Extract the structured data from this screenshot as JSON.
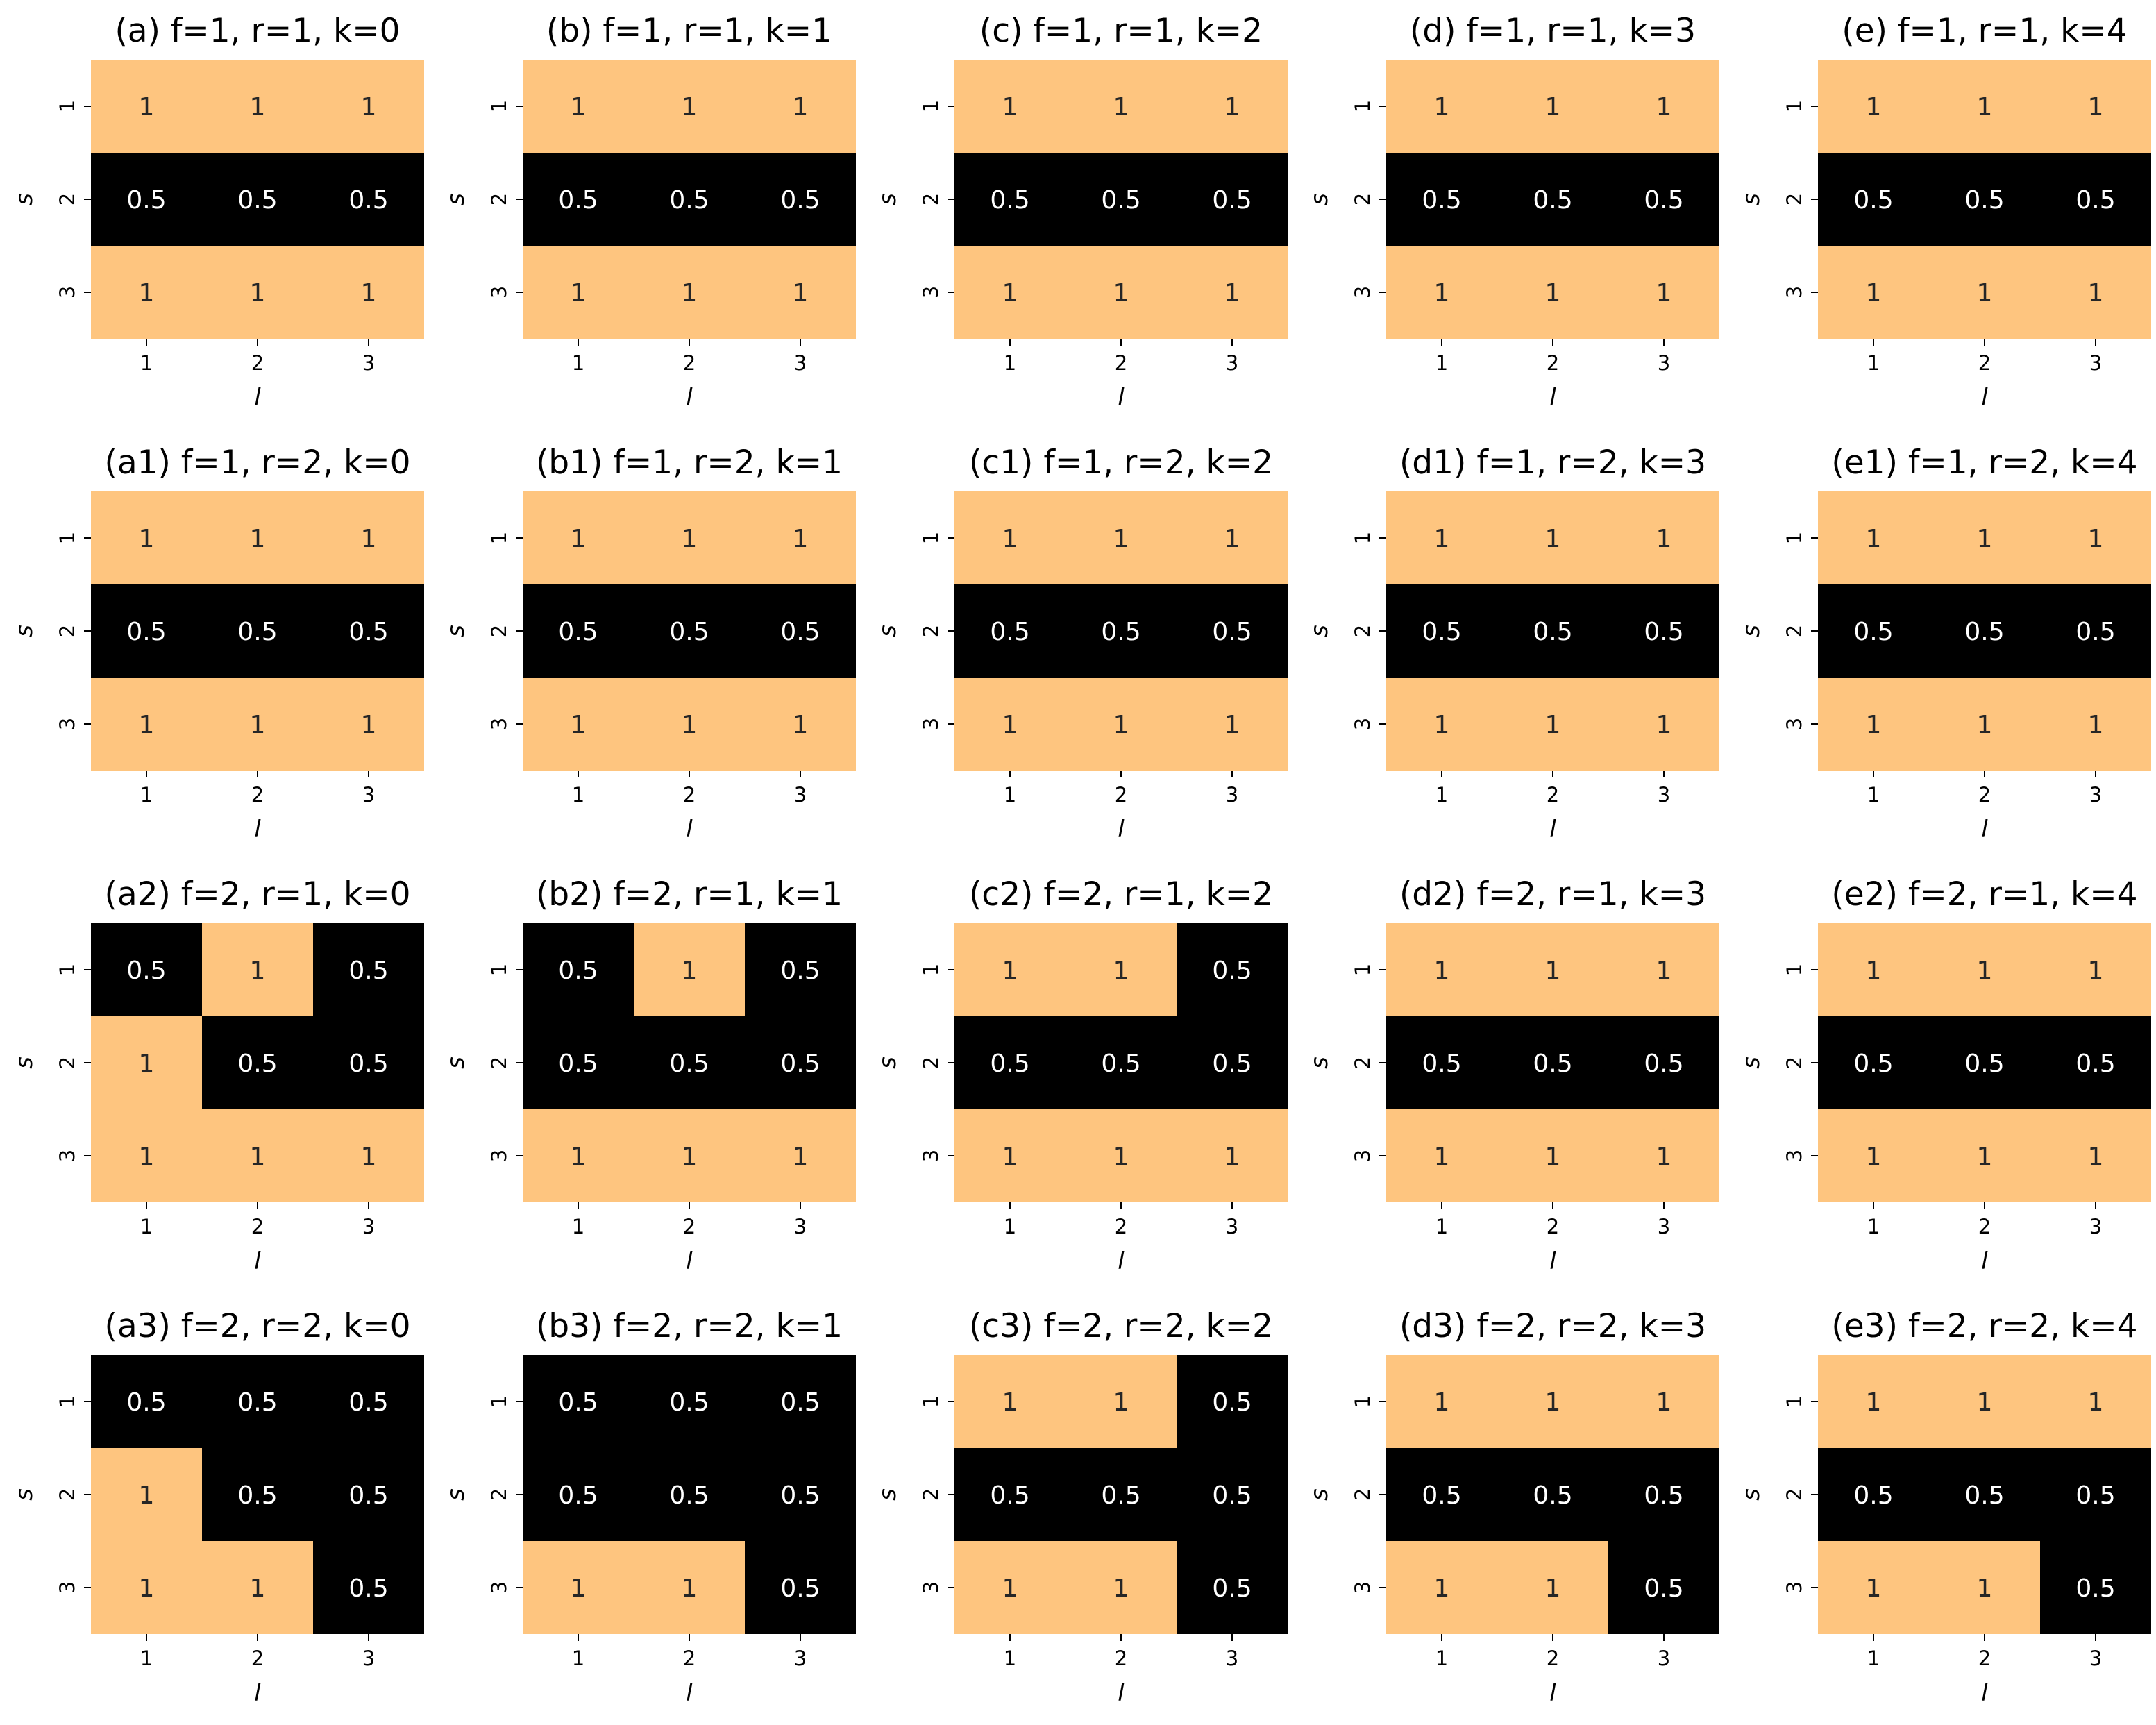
{
  "colors": {
    "high": "#fec57f",
    "low": "#000000",
    "text_on_high": "#262626",
    "text_on_low": "#ffffff"
  },
  "axis_labels": {
    "x": "l",
    "y": "s"
  },
  "chart_data": [
    {
      "type": "heatmap",
      "title": "(a) f=1, r=1, k=0",
      "x_ticks": [
        "1",
        "2",
        "3"
      ],
      "y_ticks": [
        "1",
        "2",
        "3"
      ],
      "xlabel": "l",
      "ylabel": "s",
      "values": [
        [
          1,
          1,
          1
        ],
        [
          0.5,
          0.5,
          0.5
        ],
        [
          1,
          1,
          1
        ]
      ]
    },
    {
      "type": "heatmap",
      "title": "(b) f=1, r=1, k=1",
      "x_ticks": [
        "1",
        "2",
        "3"
      ],
      "y_ticks": [
        "1",
        "2",
        "3"
      ],
      "xlabel": "l",
      "ylabel": "s",
      "values": [
        [
          1,
          1,
          1
        ],
        [
          0.5,
          0.5,
          0.5
        ],
        [
          1,
          1,
          1
        ]
      ]
    },
    {
      "type": "heatmap",
      "title": "(c) f=1, r=1, k=2",
      "x_ticks": [
        "1",
        "2",
        "3"
      ],
      "y_ticks": [
        "1",
        "2",
        "3"
      ],
      "xlabel": "l",
      "ylabel": "s",
      "values": [
        [
          1,
          1,
          1
        ],
        [
          0.5,
          0.5,
          0.5
        ],
        [
          1,
          1,
          1
        ]
      ]
    },
    {
      "type": "heatmap",
      "title": "(d) f=1, r=1, k=3",
      "x_ticks": [
        "1",
        "2",
        "3"
      ],
      "y_ticks": [
        "1",
        "2",
        "3"
      ],
      "xlabel": "l",
      "ylabel": "s",
      "values": [
        [
          1,
          1,
          1
        ],
        [
          0.5,
          0.5,
          0.5
        ],
        [
          1,
          1,
          1
        ]
      ]
    },
    {
      "type": "heatmap",
      "title": "(e) f=1, r=1, k=4",
      "x_ticks": [
        "1",
        "2",
        "3"
      ],
      "y_ticks": [
        "1",
        "2",
        "3"
      ],
      "xlabel": "l",
      "ylabel": "s",
      "values": [
        [
          1,
          1,
          1
        ],
        [
          0.5,
          0.5,
          0.5
        ],
        [
          1,
          1,
          1
        ]
      ]
    },
    {
      "type": "heatmap",
      "title": "(a1) f=1, r=2, k=0",
      "x_ticks": [
        "1",
        "2",
        "3"
      ],
      "y_ticks": [
        "1",
        "2",
        "3"
      ],
      "xlabel": "l",
      "ylabel": "s",
      "values": [
        [
          1,
          1,
          1
        ],
        [
          0.5,
          0.5,
          0.5
        ],
        [
          1,
          1,
          1
        ]
      ]
    },
    {
      "type": "heatmap",
      "title": "(b1) f=1, r=2, k=1",
      "x_ticks": [
        "1",
        "2",
        "3"
      ],
      "y_ticks": [
        "1",
        "2",
        "3"
      ],
      "xlabel": "l",
      "ylabel": "s",
      "values": [
        [
          1,
          1,
          1
        ],
        [
          0.5,
          0.5,
          0.5
        ],
        [
          1,
          1,
          1
        ]
      ]
    },
    {
      "type": "heatmap",
      "title": "(c1) f=1, r=2, k=2",
      "x_ticks": [
        "1",
        "2",
        "3"
      ],
      "y_ticks": [
        "1",
        "2",
        "3"
      ],
      "xlabel": "l",
      "ylabel": "s",
      "values": [
        [
          1,
          1,
          1
        ],
        [
          0.5,
          0.5,
          0.5
        ],
        [
          1,
          1,
          1
        ]
      ]
    },
    {
      "type": "heatmap",
      "title": "(d1) f=1, r=2, k=3",
      "x_ticks": [
        "1",
        "2",
        "3"
      ],
      "y_ticks": [
        "1",
        "2",
        "3"
      ],
      "xlabel": "l",
      "ylabel": "s",
      "values": [
        [
          1,
          1,
          1
        ],
        [
          0.5,
          0.5,
          0.5
        ],
        [
          1,
          1,
          1
        ]
      ]
    },
    {
      "type": "heatmap",
      "title": "(e1) f=1, r=2, k=4",
      "x_ticks": [
        "1",
        "2",
        "3"
      ],
      "y_ticks": [
        "1",
        "2",
        "3"
      ],
      "xlabel": "l",
      "ylabel": "s",
      "values": [
        [
          1,
          1,
          1
        ],
        [
          0.5,
          0.5,
          0.5
        ],
        [
          1,
          1,
          1
        ]
      ]
    },
    {
      "type": "heatmap",
      "title": "(a2) f=2, r=1, k=0",
      "x_ticks": [
        "1",
        "2",
        "3"
      ],
      "y_ticks": [
        "1",
        "2",
        "3"
      ],
      "xlabel": "l",
      "ylabel": "s",
      "values": [
        [
          0.5,
          1,
          0.5
        ],
        [
          1,
          0.5,
          0.5
        ],
        [
          1,
          1,
          1
        ]
      ]
    },
    {
      "type": "heatmap",
      "title": "(b2) f=2, r=1, k=1",
      "x_ticks": [
        "1",
        "2",
        "3"
      ],
      "y_ticks": [
        "1",
        "2",
        "3"
      ],
      "xlabel": "l",
      "ylabel": "s",
      "values": [
        [
          0.5,
          1,
          0.5
        ],
        [
          0.5,
          0.5,
          0.5
        ],
        [
          1,
          1,
          1
        ]
      ]
    },
    {
      "type": "heatmap",
      "title": "(c2) f=2, r=1, k=2",
      "x_ticks": [
        "1",
        "2",
        "3"
      ],
      "y_ticks": [
        "1",
        "2",
        "3"
      ],
      "xlabel": "l",
      "ylabel": "s",
      "values": [
        [
          1,
          1,
          0.5
        ],
        [
          0.5,
          0.5,
          0.5
        ],
        [
          1,
          1,
          1
        ]
      ]
    },
    {
      "type": "heatmap",
      "title": "(d2) f=2, r=1, k=3",
      "x_ticks": [
        "1",
        "2",
        "3"
      ],
      "y_ticks": [
        "1",
        "2",
        "3"
      ],
      "xlabel": "l",
      "ylabel": "s",
      "values": [
        [
          1,
          1,
          1
        ],
        [
          0.5,
          0.5,
          0.5
        ],
        [
          1,
          1,
          1
        ]
      ]
    },
    {
      "type": "heatmap",
      "title": "(e2) f=2, r=1, k=4",
      "x_ticks": [
        "1",
        "2",
        "3"
      ],
      "y_ticks": [
        "1",
        "2",
        "3"
      ],
      "xlabel": "l",
      "ylabel": "s",
      "values": [
        [
          1,
          1,
          1
        ],
        [
          0.5,
          0.5,
          0.5
        ],
        [
          1,
          1,
          1
        ]
      ]
    },
    {
      "type": "heatmap",
      "title": "(a3) f=2, r=2, k=0",
      "x_ticks": [
        "1",
        "2",
        "3"
      ],
      "y_ticks": [
        "1",
        "2",
        "3"
      ],
      "xlabel": "l",
      "ylabel": "s",
      "values": [
        [
          0.5,
          0.5,
          0.5
        ],
        [
          1,
          0.5,
          0.5
        ],
        [
          1,
          1,
          0.5
        ]
      ]
    },
    {
      "type": "heatmap",
      "title": "(b3) f=2, r=2, k=1",
      "x_ticks": [
        "1",
        "2",
        "3"
      ],
      "y_ticks": [
        "1",
        "2",
        "3"
      ],
      "xlabel": "l",
      "ylabel": "s",
      "values": [
        [
          0.5,
          0.5,
          0.5
        ],
        [
          0.5,
          0.5,
          0.5
        ],
        [
          1,
          1,
          0.5
        ]
      ]
    },
    {
      "type": "heatmap",
      "title": "(c3) f=2, r=2, k=2",
      "x_ticks": [
        "1",
        "2",
        "3"
      ],
      "y_ticks": [
        "1",
        "2",
        "3"
      ],
      "xlabel": "l",
      "ylabel": "s",
      "values": [
        [
          1,
          1,
          0.5
        ],
        [
          0.5,
          0.5,
          0.5
        ],
        [
          1,
          1,
          0.5
        ]
      ]
    },
    {
      "type": "heatmap",
      "title": "(d3) f=2, r=2, k=3",
      "x_ticks": [
        "1",
        "2",
        "3"
      ],
      "y_ticks": [
        "1",
        "2",
        "3"
      ],
      "xlabel": "l",
      "ylabel": "s",
      "values": [
        [
          1,
          1,
          1
        ],
        [
          0.5,
          0.5,
          0.5
        ],
        [
          1,
          1,
          0.5
        ]
      ]
    },
    {
      "type": "heatmap",
      "title": "(e3) f=2, r=2, k=4",
      "x_ticks": [
        "1",
        "2",
        "3"
      ],
      "y_ticks": [
        "1",
        "2",
        "3"
      ],
      "xlabel": "l",
      "ylabel": "s",
      "values": [
        [
          1,
          1,
          1
        ],
        [
          0.5,
          0.5,
          0.5
        ],
        [
          1,
          1,
          0.5
        ]
      ]
    }
  ]
}
